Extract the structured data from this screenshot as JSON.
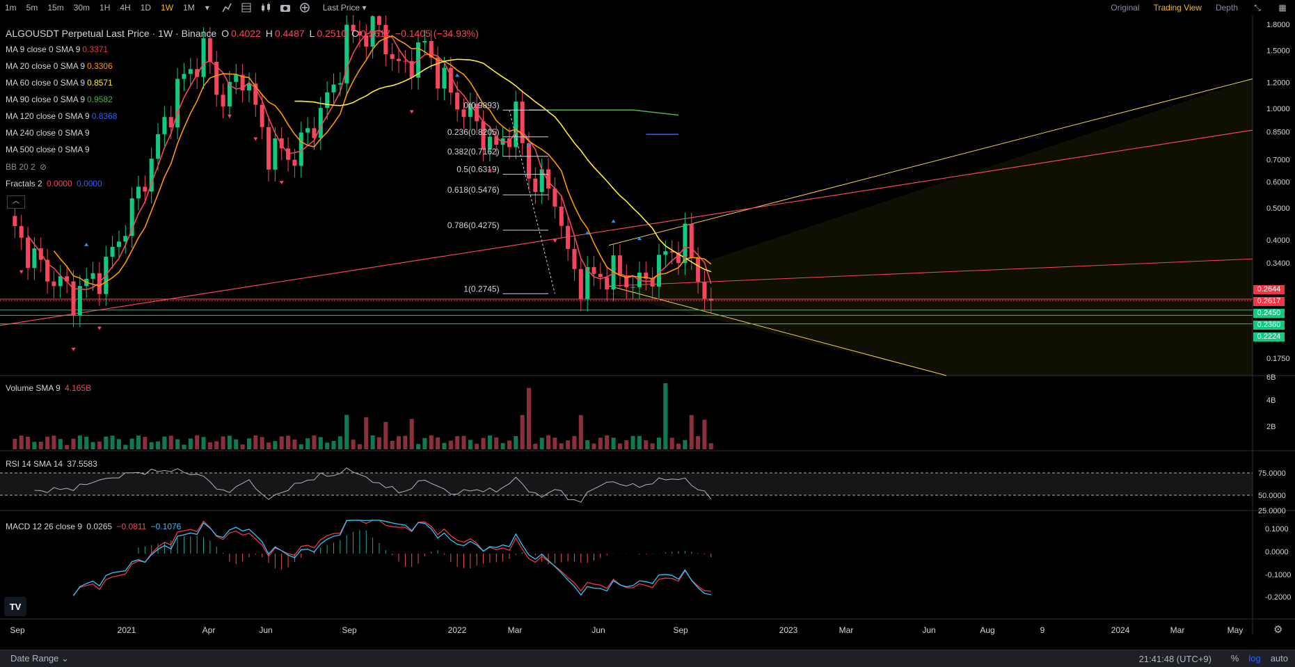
{
  "toolbar": {
    "timeframes": [
      "1m",
      "5m",
      "15m",
      "30m",
      "1H",
      "4H",
      "1D",
      "1W",
      "1M"
    ],
    "active_timeframe": "1W",
    "price_type": "Last Price",
    "view_tabs": [
      "Original",
      "Trading View",
      "Depth"
    ],
    "active_view": "Trading View"
  },
  "legend": {
    "symbol": "ALGOUSDT Perpetual Last Price · 1W · Binance",
    "open_label": "O",
    "open": "0.4022",
    "high_label": "H",
    "high": "0.4487",
    "low_label": "L",
    "low": "0.2510",
    "close_label": "C",
    "close": "0.2617",
    "change": "−0.1405 (−34.93%)",
    "ma": [
      {
        "label": "MA 9 close 0 SMA 9",
        "value": "0.3371",
        "color": "#f23645"
      },
      {
        "label": "MA 20 close 0 SMA 9",
        "value": "0.3306",
        "color": "#ff9800"
      },
      {
        "label": "MA 60 close 0 SMA 9",
        "value": "0.8571",
        "color": "#ffeb3b"
      },
      {
        "label": "MA 90 close 0 SMA 9",
        "value": "0.9582",
        "color": "#4caf50"
      },
      {
        "label": "MA 120 close 0 SMA 9",
        "value": "0.8368",
        "color": "#2962ff"
      },
      {
        "label": "MA 240 close 0 SMA 9",
        "value": "",
        "color": "#d1d4dc"
      },
      {
        "label": "MA 500 close 0 SMA 9",
        "value": "",
        "color": "#d1d4dc"
      }
    ],
    "bb": "BB 20 2",
    "fractals_label": "Fractals 2",
    "fractals_up": "0.0000",
    "fractals_down": "0.0000"
  },
  "volume_legend": {
    "label": "Volume SMA 9",
    "value": "4.165B"
  },
  "rsi_legend": {
    "label": "RSI 14 SMA 14",
    "value": "37.5583"
  },
  "macd_legend": {
    "label": "MACD 12 26 close 9",
    "v1": "0.0265",
    "v2": "−0.0811",
    "v3": "−0.1076"
  },
  "price_axis": [
    "1.8000",
    "1.5000",
    "1.2000",
    "1.0000",
    "0.8500",
    "0.7000",
    "0.6000",
    "0.5000",
    "0.4000",
    "0.3400",
    "0.1750"
  ],
  "price_tags": [
    {
      "value": "0.2644",
      "color": "#f23645"
    },
    {
      "value": "0.2617",
      "color": "#f23645"
    },
    {
      "value": "0.2450",
      "color": "#0ecb81"
    },
    {
      "value": "0.2360",
      "color": "#0ecb81"
    },
    {
      "value": "0.2224",
      "color": "#0ecb81"
    }
  ],
  "volume_axis": [
    "6B",
    "4B",
    "2B"
  ],
  "rsi_axis": [
    "75.0000",
    "50.0000",
    "25.0000"
  ],
  "macd_axis": [
    "0.1000",
    "0.0000",
    "-0.1000",
    "-0.2000"
  ],
  "time_axis": [
    "Sep",
    "2021",
    "Apr",
    "Jun",
    "Sep",
    "2022",
    "Mar",
    "Jun",
    "Sep",
    "2023",
    "Mar",
    "Jun",
    "Aug",
    "9",
    "2024",
    "Mar",
    "May"
  ],
  "fib_levels": [
    {
      "label": "0(0.9893)",
      "price": 0.9893
    },
    {
      "label": "0.236(0.8205)",
      "price": 0.8205
    },
    {
      "label": "0.382(0.7162)",
      "price": 0.7162
    },
    {
      "label": "0.5(0.6319)",
      "price": 0.6319
    },
    {
      "label": "0.618(0.5476)",
      "price": 0.5476
    },
    {
      "label": "0.786(0.4275)",
      "price": 0.4275
    },
    {
      "label": "1(0.2745)",
      "price": 0.2745
    }
  ],
  "bottom": {
    "date_range": "Date Range",
    "clock": "21:41:48 (UTC+9)",
    "pct": "%",
    "log": "log",
    "auto": "auto"
  },
  "logo_text": "TV"
}
